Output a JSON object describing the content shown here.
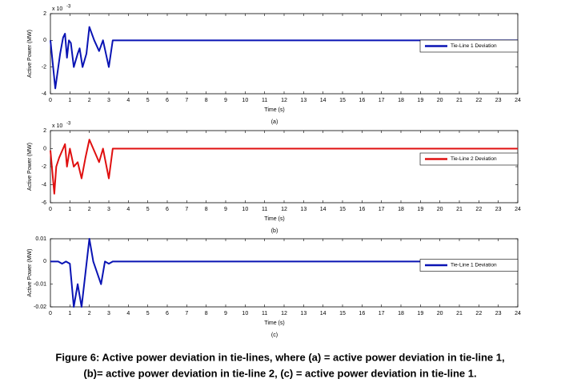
{
  "chart_data": [
    {
      "type": "line",
      "label": "(a)",
      "xlabel": "Time (s)",
      "ylabel": "Active Power (MW)",
      "y_multiplier": "x 10",
      "y_exponent": "-3",
      "xlim": [
        0,
        24
      ],
      "xticks": [
        0,
        1,
        2,
        3,
        4,
        5,
        6,
        7,
        8,
        9,
        10,
        11,
        12,
        13,
        14,
        15,
        16,
        17,
        18,
        19,
        20,
        21,
        22,
        23,
        24
      ],
      "ylim": [
        -4,
        2
      ],
      "yticks": [
        -4,
        -2,
        0,
        2
      ],
      "legend": "center right",
      "x": [
        0,
        0.25,
        0.5,
        0.65,
        0.75,
        0.85,
        0.95,
        1.05,
        1.2,
        1.4,
        1.5,
        1.65,
        1.85,
        2.0,
        2.25,
        2.5,
        2.7,
        3.0,
        3.2,
        24
      ],
      "series": [
        {
          "name": "Tie-Line 1 Deviation",
          "color": "#0a14b4",
          "values": [
            0,
            -3.6,
            -1,
            0.2,
            0.5,
            -1.3,
            0,
            -0.2,
            -2,
            -1,
            -0.6,
            -2,
            -1,
            1,
            0,
            -0.8,
            0,
            -2,
            0,
            0
          ]
        }
      ]
    },
    {
      "type": "line",
      "label": "(b)",
      "xlabel": "Time (s)",
      "ylabel": "Active Power (MW)",
      "y_multiplier": "x 10",
      "y_exponent": "-3",
      "xlim": [
        0,
        24
      ],
      "xticks": [
        0,
        1,
        2,
        3,
        4,
        5,
        6,
        7,
        8,
        9,
        10,
        11,
        12,
        13,
        14,
        15,
        16,
        17,
        18,
        19,
        20,
        21,
        22,
        23,
        24
      ],
      "ylim": [
        -6,
        2
      ],
      "yticks": [
        -6,
        -4,
        -2,
        0,
        2
      ],
      "legend": "center right",
      "x": [
        0,
        0.2,
        0.3,
        0.45,
        0.75,
        0.85,
        1.0,
        1.2,
        1.4,
        1.6,
        1.8,
        2.0,
        2.2,
        2.5,
        2.7,
        3.0,
        3.2,
        24
      ],
      "series": [
        {
          "name": "Tie-Line 2 Deviation",
          "color": "#e01010",
          "values": [
            -0.2,
            -5,
            -2,
            -1,
            0.5,
            -2,
            0,
            -2,
            -1.5,
            -3.3,
            -1,
            1,
            0,
            -1.5,
            0,
            -3.3,
            0,
            0
          ]
        }
      ]
    },
    {
      "type": "line",
      "label": "(c)",
      "xlabel": "Time (s)",
      "ylabel": "Active Power (MW)",
      "xlim": [
        0,
        24
      ],
      "xticks": [
        0,
        1,
        2,
        3,
        4,
        5,
        6,
        7,
        8,
        9,
        10,
        11,
        12,
        13,
        14,
        15,
        16,
        17,
        18,
        19,
        20,
        21,
        22,
        23,
        24
      ],
      "ylim": [
        -0.02,
        0.01
      ],
      "yticks": [
        -0.02,
        -0.01,
        0,
        0.01
      ],
      "legend": "center right",
      "x": [
        0,
        0.4,
        0.6,
        0.8,
        1.0,
        1.2,
        1.4,
        1.6,
        2.0,
        2.2,
        2.6,
        2.8,
        3.0,
        3.2,
        24
      ],
      "series": [
        {
          "name": "Tie-Line 1 Deviation",
          "color": "#0a14b4",
          "values": [
            0,
            0,
            -0.001,
            0,
            -0.001,
            -0.02,
            -0.01,
            -0.02,
            0.01,
            0,
            -0.01,
            0,
            -0.001,
            0,
            0
          ]
        }
      ]
    }
  ],
  "caption": [
    "Figure 6: Active power deviation in tie-lines, where (a) = active power deviation in tie-line 1,",
    "(b)= active power deviation in tie-line 2, (c) = active power deviation in tie-line 1."
  ]
}
